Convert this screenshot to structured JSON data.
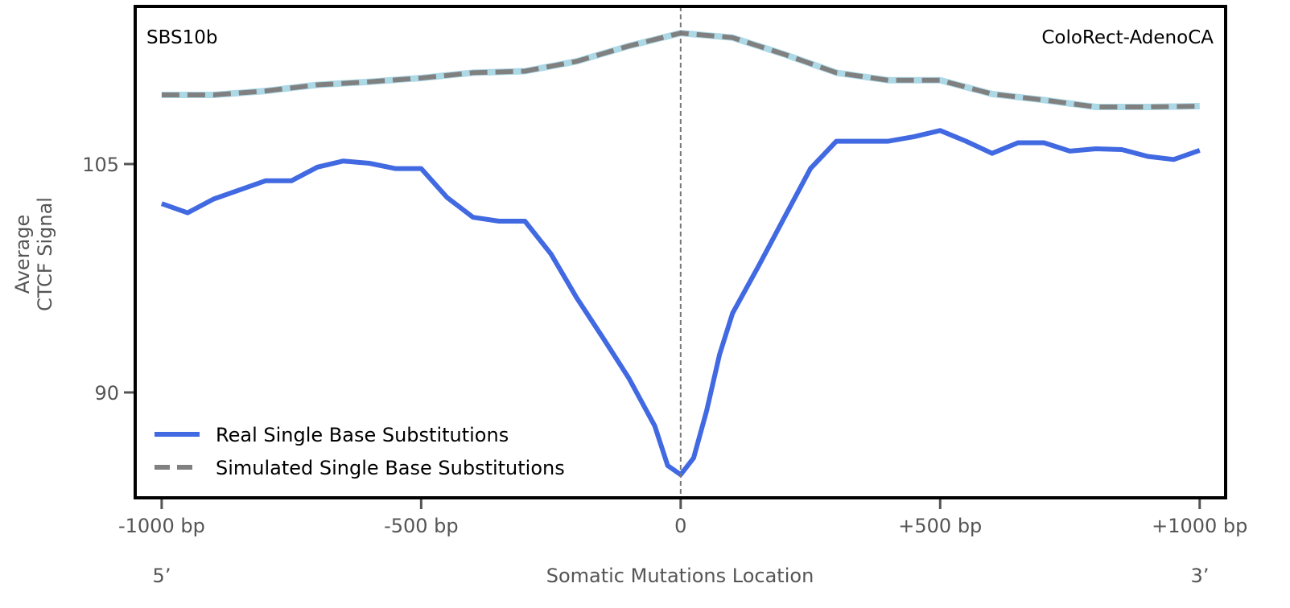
{
  "chart_data": {
    "type": "line",
    "title_left": "SBS10b",
    "title_right": "ColoRect-AdenoCA",
    "xlabel": "Somatic Mutations Location",
    "ylabel_line1": "Average",
    "ylabel_line2": "CTCF Signal",
    "x_end_left": "5’",
    "x_end_right": "3’",
    "xlim": [
      -1051,
      1050
    ],
    "ylim": [
      83.08,
      115.35
    ],
    "xticks": [
      {
        "value": -1000,
        "label": "-1000 bp"
      },
      {
        "value": -500,
        "label": "-500 bp"
      },
      {
        "value": 0,
        "label": "0"
      },
      {
        "value": 500,
        "label": "+500 bp"
      },
      {
        "value": 1000,
        "label": "+1000 bp"
      }
    ],
    "yticks": [
      {
        "value": 105,
        "label": "105"
      },
      {
        "value": 90,
        "label": "90"
      }
    ],
    "vline_x": 0,
    "legend_position": "bottom-left",
    "series": [
      {
        "name": "Real Single Base Substitutions",
        "color": "#4169e1",
        "style": "solid",
        "x": [
          -1000,
          -950,
          -900,
          -850,
          -800,
          -750,
          -700,
          -650,
          -600,
          -550,
          -500,
          -450,
          -400,
          -350,
          -300,
          -250,
          -200,
          -150,
          -100,
          -50,
          -25,
          0,
          25,
          50,
          75,
          100,
          150,
          200,
          250,
          300,
          350,
          400,
          450,
          500,
          550,
          600,
          650,
          700,
          750,
          800,
          850,
          900,
          950,
          1000
        ],
        "y": [
          102.4,
          101.8,
          102.7,
          103.3,
          103.9,
          103.9,
          104.8,
          105.2,
          105.05,
          104.7,
          104.7,
          102.8,
          101.5,
          101.25,
          101.25,
          99.1,
          96.2,
          93.6,
          90.95,
          87.8,
          85.2,
          84.6,
          85.7,
          88.8,
          92.5,
          95.2,
          98.3,
          101.5,
          104.7,
          106.5,
          106.5,
          106.5,
          106.8,
          107.2,
          106.5,
          105.7,
          106.4,
          106.4,
          105.85,
          106.0,
          105.95,
          105.5,
          105.3,
          105.9
        ]
      },
      {
        "name": "Simulated Single Base Substitutions",
        "color": "#808080",
        "band_color": "#add8e6",
        "style": "dashed",
        "x": [
          -1000,
          -900,
          -800,
          -700,
          -600,
          -500,
          -400,
          -300,
          -200,
          -100,
          0,
          100,
          200,
          300,
          400,
          500,
          600,
          700,
          800,
          900,
          1000
        ],
        "y": [
          109.54,
          109.54,
          109.8,
          110.2,
          110.4,
          110.65,
          111.0,
          111.1,
          111.75,
          112.75,
          113.6,
          113.3,
          112.2,
          111.0,
          110.5,
          110.5,
          109.6,
          109.2,
          108.75,
          108.75,
          108.8
        ]
      }
    ]
  }
}
